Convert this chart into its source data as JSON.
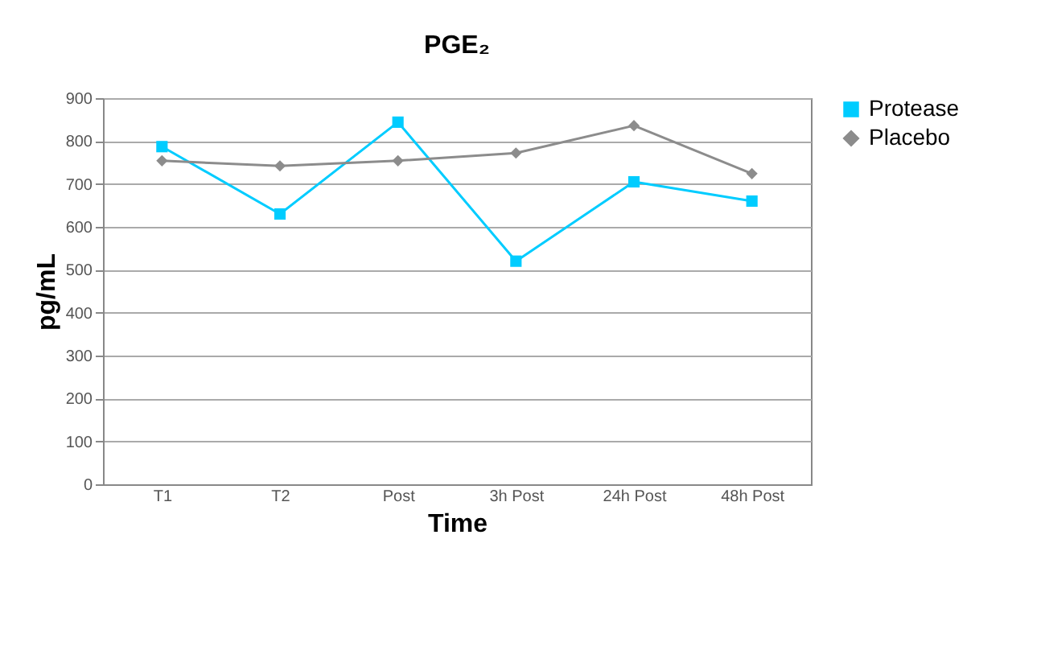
{
  "chart_data": {
    "type": "line",
    "title": "PGE₂",
    "xlabel": "Time",
    "ylabel": "pg/mL",
    "categories": [
      "T1",
      "T2",
      "Post",
      "3h Post",
      "24h Post",
      "48h Post"
    ],
    "series": [
      {
        "name": "Protease",
        "color": "#00ccff",
        "marker": "square",
        "values": [
          787,
          630,
          844,
          520,
          705,
          660
        ]
      },
      {
        "name": "Placebo",
        "color": "#8c8c8c",
        "marker": "diamond",
        "values": [
          754,
          742,
          754,
          772,
          836,
          724
        ]
      }
    ],
    "ylim": [
      0,
      900
    ],
    "yticks": [
      0,
      100,
      200,
      300,
      400,
      500,
      600,
      700,
      800,
      900
    ],
    "grid": "y",
    "legend": "right"
  }
}
